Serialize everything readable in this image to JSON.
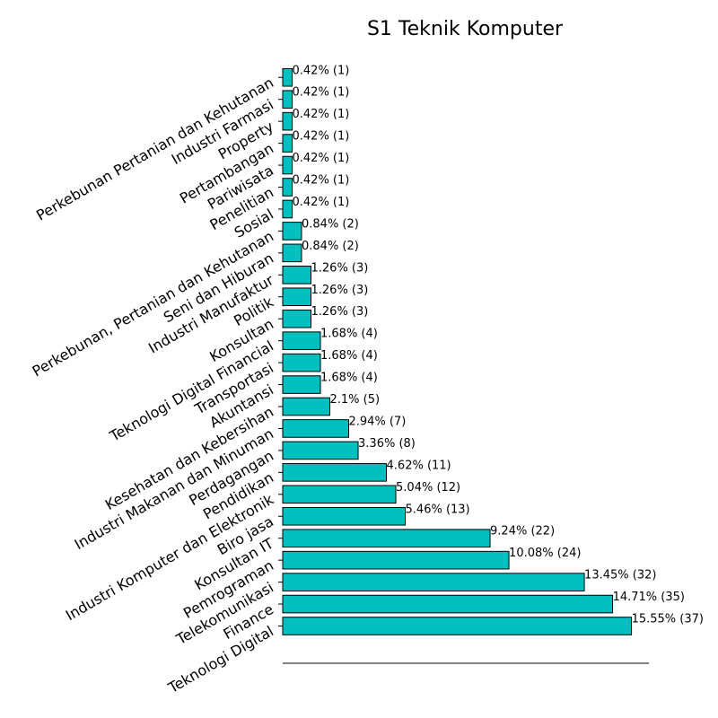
{
  "chart_data": {
    "type": "bar",
    "orientation": "horizontal",
    "title": "S1 Teknik Komputer",
    "xlabel": "",
    "ylabel": "",
    "grid": false,
    "bar_color": "#00BFBF",
    "edge_color": "#000000",
    "categories": [
      "Teknologi Digital",
      "Finance",
      "Telekomunikasi",
      "Pemrograman",
      "Konsultan IT",
      "Biro jasa",
      "Industri Komputer dan Elektronik",
      "Pendidikan",
      "Perdagangan",
      "Industri Makanan dan Minuman",
      "Kesehatan dan Kebersihan",
      "Akuntansi",
      "Transportasi",
      "Teknologi Digital Financial",
      "Konsultan",
      "Politik",
      "Industri Manufaktur",
      "Seni dan Hiburan",
      "Perkebunan, Pertanian dan Kehutanan",
      "Sosial",
      "Penelitian",
      "Pariwisata",
      "Pertambangan",
      "Property",
      "Industri Farmasi",
      "Perkebunan Pertanian dan Kehutanan"
    ],
    "values": [
      37,
      35,
      32,
      24,
      22,
      13,
      12,
      11,
      8,
      7,
      5,
      4,
      4,
      4,
      3,
      3,
      3,
      2,
      2,
      1,
      1,
      1,
      1,
      1,
      1,
      1
    ],
    "data_labels": [
      "15.55% (37)",
      "14.71% (35)",
      "13.45% (32)",
      "10.08% (24)",
      "9.24% (22)",
      "5.46% (13)",
      "5.04% (12)",
      "4.62% (11)",
      "3.36% (8)",
      "2.94% (7)",
      "2.1% (5)",
      "1.68% (4)",
      "1.68% (4)",
      "1.68% (4)",
      "1.26% (3)",
      "1.26% (3)",
      "1.26% (3)",
      "0.84% (2)",
      "0.84% (2)",
      "0.42% (1)",
      "0.42% (1)",
      "0.42% (1)",
      "0.42% (1)",
      "0.42% (1)",
      "0.42% (1)",
      "0.42% (1)"
    ],
    "xlim": [
      0,
      38.85
    ]
  }
}
